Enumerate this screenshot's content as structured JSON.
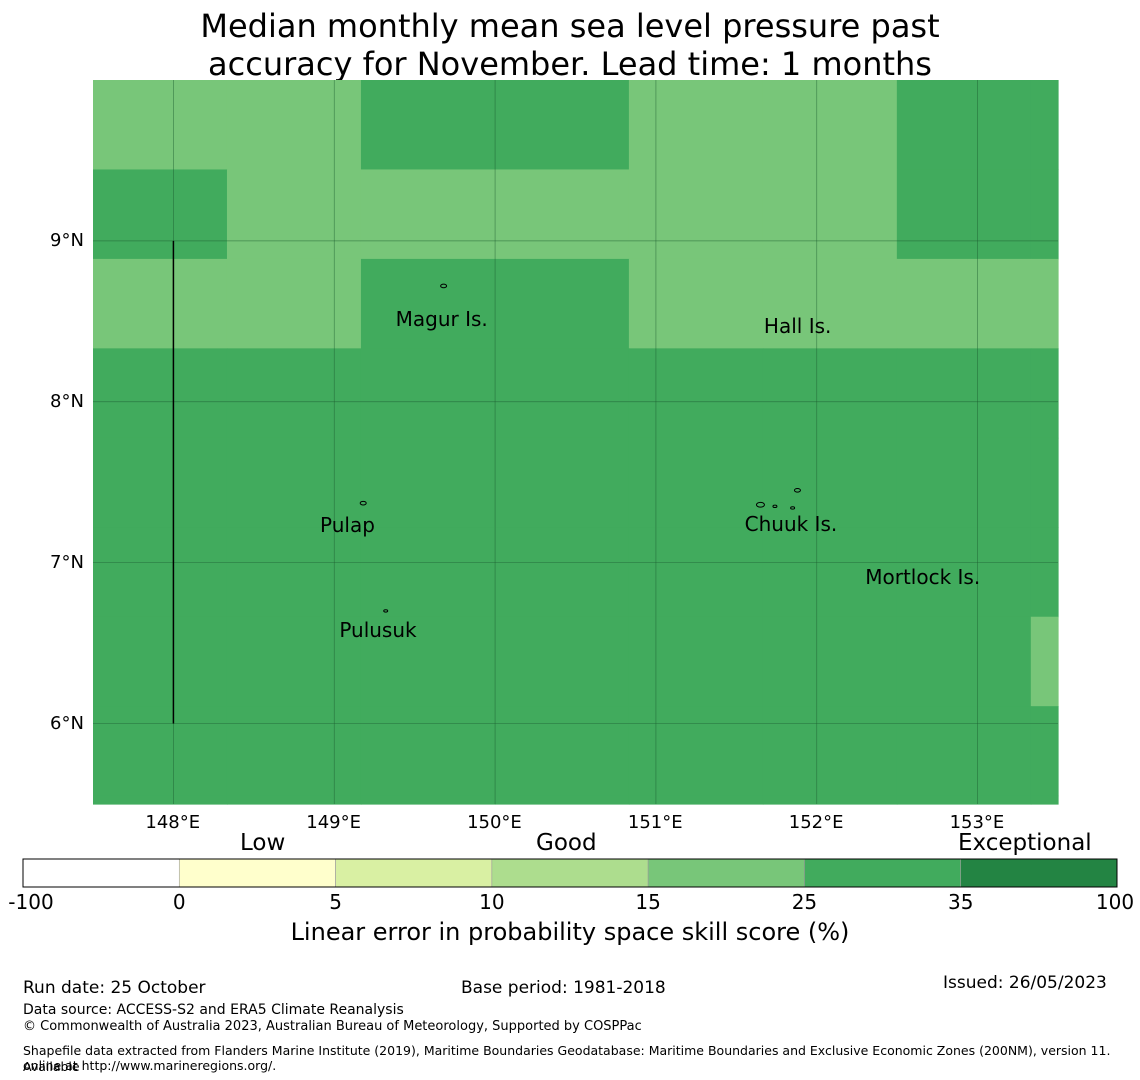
{
  "title_line1": "Median monthly mean sea level pressure past",
  "title_line2": "accuracy for November. Lead time: 1 months",
  "map": {
    "lon_range": [
      147.5,
      153.5
    ],
    "lat_range": [
      5.5,
      10.0
    ],
    "lon_ticks": [
      "148°E",
      "149°E",
      "150°E",
      "151°E",
      "152°E",
      "153°E"
    ],
    "lat_ticks": [
      "9°N",
      "8°N",
      "7°N",
      "6°N"
    ],
    "grid_lon_step": 0.833,
    "grid_lat_step": 0.556,
    "grid_lon_start": 147.5,
    "grid_lat_start": 10.0,
    "grid_categories": [
      [
        4,
        4,
        5,
        5,
        4,
        4,
        5,
        5
      ],
      [
        5,
        4,
        4,
        4,
        4,
        4,
        5,
        5
      ],
      [
        4,
        4,
        5,
        5,
        4,
        4,
        4,
        4
      ],
      [
        5,
        5,
        5,
        5,
        5,
        5,
        5,
        5
      ],
      [
        5,
        5,
        5,
        5,
        5,
        5,
        5,
        5
      ],
      [
        5,
        5,
        5,
        5,
        5,
        5,
        5,
        5
      ],
      [
        5,
        5,
        5,
        5,
        5,
        5,
        5,
        4
      ],
      [
        5,
        5,
        5,
        5,
        5,
        5,
        5,
        5
      ],
      [
        5,
        5,
        5,
        5,
        5,
        5,
        5,
        5
      ]
    ],
    "islands": [
      {
        "name": "Magur Is.",
        "lon": 149.68,
        "lat": 8.5
      },
      {
        "name": "Hall Is.",
        "lon": 151.97,
        "lat": 8.46
      },
      {
        "name": "Pulap",
        "lon": 149.21,
        "lat": 7.22
      },
      {
        "name": "Chuuk Is.",
        "lon": 151.85,
        "lat": 7.23
      },
      {
        "name": "Mortlock Is.",
        "lon": 152.6,
        "lat": 6.9
      },
      {
        "name": "Pulusuk",
        "lon": 149.33,
        "lat": 6.57
      }
    ],
    "boundary_line": {
      "lon": 148.0,
      "lat_from": 6.0,
      "lat_to": 9.0
    }
  },
  "colorbar": {
    "category_labels": [
      "Low",
      "Good",
      "Exceptional"
    ],
    "ticks": [
      "-100",
      "0",
      "5",
      "10",
      "15",
      "25",
      "35",
      "100"
    ],
    "colors": [
      "#ffffff",
      "#ffffcc",
      "#d9f0a3",
      "#addd8e",
      "#78c679",
      "#41ab5d",
      "#238443"
    ],
    "title": "Linear error in probability space skill score (%)"
  },
  "footer": {
    "run_date": "Run date: 25 October",
    "base_period": "Base period: 1981-2018",
    "issued": "Issued: 26/05/2023",
    "data_source": "Data source: ACCESS-S2 and ERA5 Climate Reanalysis",
    "copyright": "© Commonwealth of Australia 2023, Australian Bureau of Meteorology, Supported by COSPPac",
    "shapefile_line1": "Shapefile data extracted from Flanders Marine Institute (2019), Maritime Boundaries Geodatabase: Maritime Boundaries and Exclusive Economic Zones (200NM), version 11. Available",
    "shapefile_line2": "online at http://www.marineregions.org/."
  }
}
